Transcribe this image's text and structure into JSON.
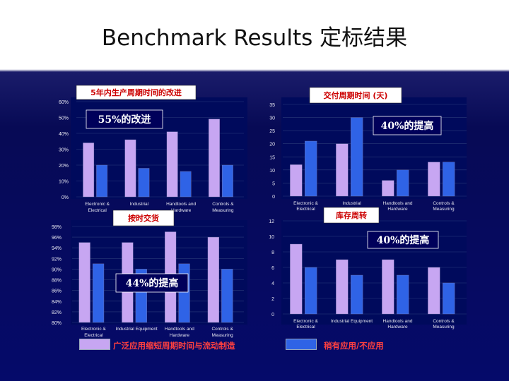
{
  "slide": {
    "title": "Benchmark Results 定标结果"
  },
  "colors": {
    "series_a": "#c7a6f2",
    "series_b": "#2f63e6",
    "panel": "#000a5c",
    "grid": "#2a3a7a",
    "tick_text": "#e6e6f0",
    "callout_red_text": "#cc0000",
    "callout_white_bg": "#ffffff",
    "callout_dark_bg": "#00005a"
  },
  "legend": {
    "series_a": "广泛应用缩短周期时间与流动制造",
    "series_b": "稍有应用/不应用"
  },
  "chart_data": [
    {
      "id": "cycle",
      "type": "bar",
      "title": "5年内生产周期时间的改进",
      "callout": "55%的改进",
      "categories": [
        "Electronic & Electrical",
        "Industrial",
        "Handtools and Hardware",
        "Controls & Measuring"
      ],
      "yticks": [
        "0%",
        "10%",
        "20%",
        "30%",
        "40%",
        "50%",
        "60%"
      ],
      "ylim": [
        0,
        60
      ],
      "series": [
        {
          "values": [
            34,
            36,
            41,
            49
          ]
        },
        {
          "values": [
            20,
            18,
            16,
            20
          ]
        }
      ]
    },
    {
      "id": "delivery",
      "type": "bar",
      "title": "交付周期时间 (天)",
      "callout": "40%的提高",
      "categories": [
        "Electronic & Electrical",
        "Industrial",
        "Handtools and Hardware",
        "Controls & Measuring"
      ],
      "yticks": [
        "0",
        "5",
        "10",
        "15",
        "20",
        "25",
        "30",
        "35"
      ],
      "ylim": [
        0,
        35
      ],
      "series": [
        {
          "values": [
            12,
            20,
            6,
            13
          ]
        },
        {
          "values": [
            21,
            30,
            10,
            13
          ]
        }
      ]
    },
    {
      "id": "ontime",
      "type": "bar",
      "title": "按时交货",
      "callout": "44%的提高",
      "categories": [
        "Electronic & Electrical",
        "Industrial Equipment",
        "Handtools and Hardware",
        "Controls & Measuring"
      ],
      "yticks": [
        "80%",
        "82%",
        "84%",
        "86%",
        "88%",
        "90%",
        "92%",
        "94%",
        "96%",
        "98%"
      ],
      "ylim": [
        80,
        98
      ],
      "series": [
        {
          "values": [
            95,
            95,
            97,
            96
          ]
        },
        {
          "values": [
            91,
            90,
            91,
            90
          ]
        }
      ]
    },
    {
      "id": "turns",
      "type": "bar",
      "title": "库存周转",
      "callout": "40%的提高",
      "categories": [
        "Electronic & Electrical",
        "Industrial Equipment",
        "Handtools and Hardware",
        "Controls & Measuring"
      ],
      "yticks": [
        "0",
        "2",
        "4",
        "6",
        "8",
        "10",
        "12"
      ],
      "ylim": [
        0,
        12
      ],
      "series": [
        {
          "values": [
            9,
            7,
            7,
            6
          ]
        },
        {
          "values": [
            6,
            5,
            5,
            4
          ]
        }
      ]
    }
  ]
}
